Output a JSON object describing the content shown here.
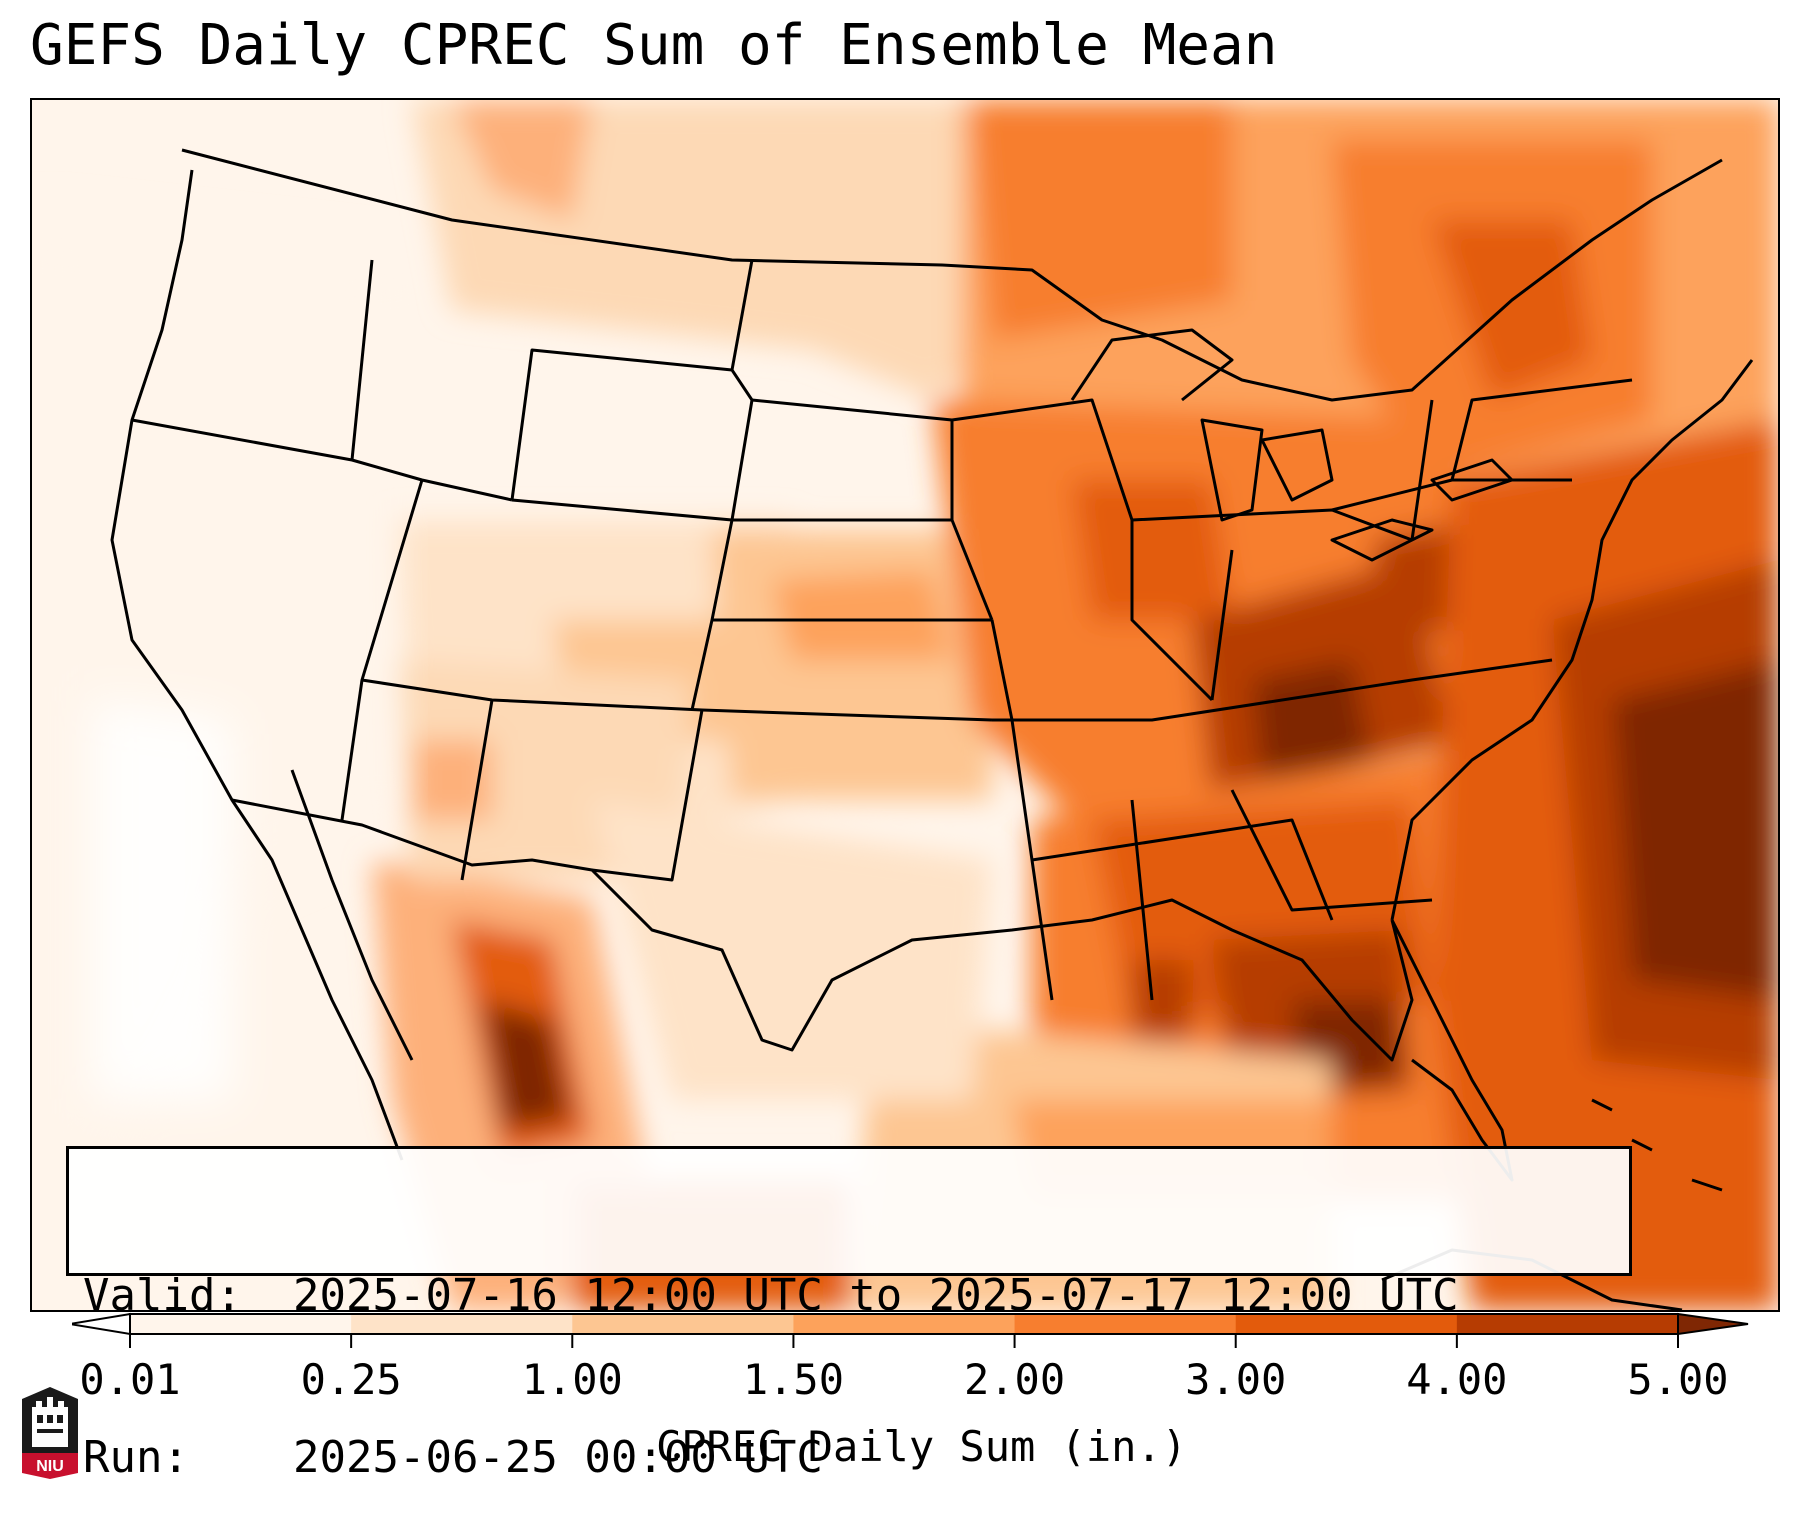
{
  "title": "GEFS Daily CPREC Sum of Ensemble Mean",
  "info": {
    "valid_key": "Valid:",
    "valid_value": "2025-07-16 12:00 UTC to 2025-07-17 12:00 UTC",
    "run_key": "Run:",
    "run_value": "2025-06-25 00:00 UTC"
  },
  "colorbar": {
    "label": "CPREC Daily Sum (in.)",
    "ticks": [
      "0.01",
      "0.25",
      "1.00",
      "1.50",
      "2.00",
      "3.00",
      "4.00",
      "5.00"
    ],
    "colors": [
      "#fff5eb",
      "#fee3c8",
      "#fdc692",
      "#fda25b",
      "#f77e2f",
      "#e35b0c",
      "#b63c02",
      "#7f2704"
    ],
    "extend": "both"
  },
  "map": {
    "projection": "Lambert Conformal",
    "region": "Continental United States",
    "field": "CPREC Daily Sum",
    "units": "in."
  },
  "logo": {
    "name": "niu-logo",
    "text": "NIU"
  }
}
